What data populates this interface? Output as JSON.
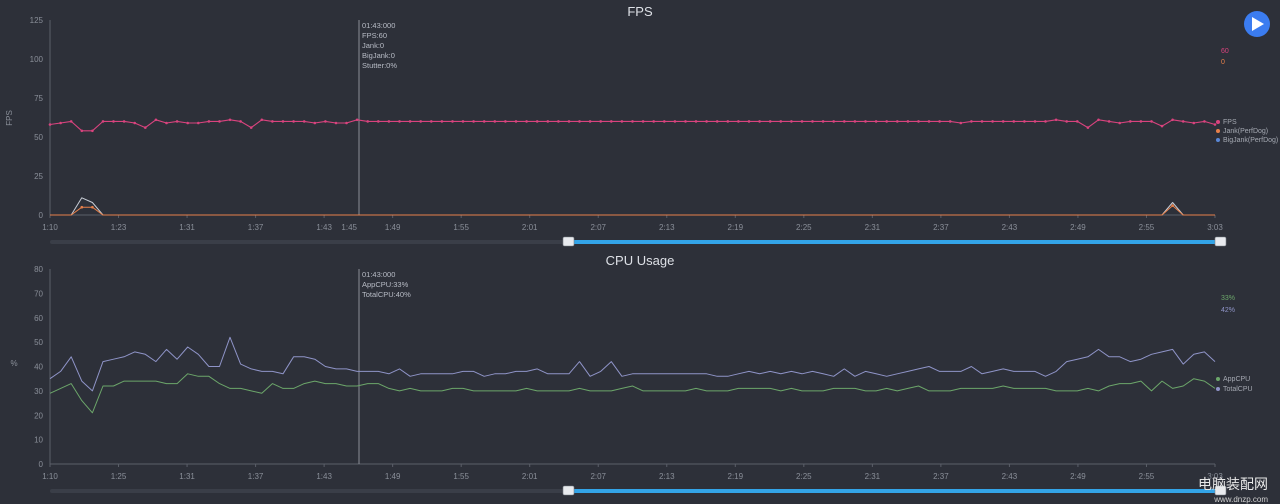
{
  "play_button": {
    "label": "play",
    "icon": "play-icon"
  },
  "watermark": {
    "title": "电脑装配网",
    "url": "www.dnzp.com"
  },
  "colors": {
    "background": "#2d3039",
    "axis": "#5b5f69",
    "fps": "#d9437e",
    "jank": "#e8804a",
    "big_jank": "#c8cdd6",
    "app_cpu": "#6ca66a",
    "total_cpu": "#8f94c8",
    "slider": "#33a4e8"
  },
  "chart_data": [
    {
      "type": "line",
      "title": "FPS",
      "ylabel": "FPS",
      "xlabel": "",
      "ylim": [
        0,
        125
      ],
      "yticks": [
        "0",
        "25",
        "50",
        "75",
        "100",
        "125"
      ],
      "xticks": [
        "1:10",
        "1:23",
        "1:31",
        "1:37",
        "1:43",
        "1:49",
        "1:55",
        "2:01",
        "2:07",
        "2:13",
        "2:19",
        "2:25",
        "2:31",
        "2:37",
        "2:43",
        "2:49",
        "2:55",
        "3:03"
      ],
      "tooltip": {
        "time": "01:43:000",
        "lines": [
          "FPS:60",
          "Jank:0",
          "BigJank:0",
          "Stutter:0%"
        ]
      },
      "legend": [
        "FPS",
        "Jank(PerfDog)",
        "BigJank(PerfDog)"
      ],
      "current_values": [
        "60",
        "0"
      ],
      "cursor_time": "1:45",
      "series": [
        {
          "name": "FPS",
          "values": [
            58,
            59,
            60,
            54,
            54,
            60,
            60,
            60,
            59,
            56,
            61,
            59,
            60,
            59,
            59,
            60,
            60,
            61,
            60,
            56,
            61,
            60,
            60,
            60,
            60,
            59,
            60,
            59,
            59,
            61,
            60,
            60,
            60,
            60,
            60,
            60,
            60,
            60,
            60,
            60,
            60,
            60,
            60,
            60,
            60,
            60,
            60,
            60,
            60,
            60,
            60,
            60,
            60,
            60,
            60,
            60,
            60,
            60,
            60,
            60,
            60,
            60,
            60,
            60,
            60,
            60,
            60,
            60,
            60,
            60,
            60,
            60,
            60,
            60,
            60,
            60,
            60,
            60,
            60,
            60,
            60,
            60,
            60,
            60,
            60,
            60,
            59,
            60,
            60,
            60,
            60,
            60,
            60,
            60,
            60,
            61,
            60,
            60,
            56,
            61,
            60,
            59,
            60,
            60,
            60,
            57,
            61,
            60,
            59,
            60,
            58
          ]
        },
        {
          "name": "Jank(PerfDog)",
          "values": [
            0,
            0,
            0,
            5,
            5,
            0,
            0,
            0,
            0,
            0,
            0,
            0,
            0,
            0,
            0,
            0,
            0,
            0,
            0,
            0,
            0,
            0,
            0,
            0,
            0,
            0,
            0,
            0,
            0,
            0,
            0,
            0,
            0,
            0,
            0,
            0,
            0,
            0,
            0,
            0,
            0,
            0,
            0,
            0,
            0,
            0,
            0,
            0,
            0,
            0,
            0,
            0,
            0,
            0,
            0,
            0,
            0,
            0,
            0,
            0,
            0,
            0,
            0,
            0,
            0,
            0,
            0,
            0,
            0,
            0,
            0,
            0,
            0,
            0,
            0,
            0,
            0,
            0,
            0,
            0,
            0,
            0,
            0,
            0,
            0,
            0,
            0,
            0,
            0,
            0,
            0,
            0,
            0,
            0,
            0,
            0,
            0,
            0,
            0,
            0,
            0,
            0,
            0,
            0,
            0,
            0,
            6,
            0,
            0,
            0,
            0
          ]
        },
        {
          "name": "BigJank(PerfDog)",
          "values": [
            0,
            0,
            0,
            11,
            8,
            0,
            0,
            0,
            0,
            0,
            0,
            0,
            0,
            0,
            0,
            0,
            0,
            0,
            0,
            0,
            0,
            0,
            0,
            0,
            0,
            0,
            0,
            0,
            0,
            0,
            0,
            0,
            0,
            0,
            0,
            0,
            0,
            0,
            0,
            0,
            0,
            0,
            0,
            0,
            0,
            0,
            0,
            0,
            0,
            0,
            0,
            0,
            0,
            0,
            0,
            0,
            0,
            0,
            0,
            0,
            0,
            0,
            0,
            0,
            0,
            0,
            0,
            0,
            0,
            0,
            0,
            0,
            0,
            0,
            0,
            0,
            0,
            0,
            0,
            0,
            0,
            0,
            0,
            0,
            0,
            0,
            0,
            0,
            0,
            0,
            0,
            0,
            0,
            0,
            0,
            0,
            0,
            0,
            0,
            0,
            0,
            0,
            0,
            0,
            0,
            0,
            8,
            0,
            0,
            0,
            0
          ]
        }
      ]
    },
    {
      "type": "line",
      "title": "CPU Usage",
      "ylabel": "%",
      "xlabel": "",
      "ylim": [
        0,
        80
      ],
      "yticks": [
        "0",
        "10",
        "20",
        "30",
        "40",
        "50",
        "60",
        "70",
        "80"
      ],
      "xticks": [
        "1:10",
        "1:25",
        "1:31",
        "1:37",
        "1:43",
        "1:49",
        "1:55",
        "2:01",
        "2:07",
        "2:13",
        "2:19",
        "2:25",
        "2:31",
        "2:37",
        "2:43",
        "2:49",
        "2:55",
        "3:03"
      ],
      "tooltip": {
        "time": "01:43:000",
        "lines": [
          "AppCPU:33%",
          "TotalCPU:40%"
        ]
      },
      "legend": [
        "AppCPU",
        "TotalCPU"
      ],
      "current_values": [
        "33%",
        "42%"
      ],
      "series": [
        {
          "name": "AppCPU",
          "values": [
            29,
            31,
            33,
            26,
            21,
            32,
            32,
            34,
            34,
            34,
            34,
            33,
            33,
            37,
            36,
            36,
            33,
            31,
            31,
            30,
            29,
            33,
            31,
            31,
            33,
            34,
            33,
            33,
            32,
            32,
            33,
            33,
            31,
            30,
            31,
            30,
            30,
            30,
            31,
            31,
            30,
            30,
            30,
            30,
            30,
            31,
            30,
            30,
            30,
            30,
            31,
            30,
            30,
            30,
            31,
            32,
            30,
            30,
            30,
            30,
            30,
            31,
            30,
            30,
            30,
            31,
            31,
            31,
            31,
            30,
            31,
            30,
            30,
            30,
            31,
            31,
            31,
            30,
            30,
            31,
            30,
            31,
            32,
            30,
            30,
            30,
            31,
            31,
            31,
            31,
            32,
            31,
            31,
            31,
            31,
            30,
            30,
            30,
            31,
            30,
            32,
            33,
            33,
            34,
            30,
            34,
            31,
            32,
            35,
            34,
            31
          ]
        },
        {
          "name": "TotalCPU",
          "values": [
            35,
            38,
            44,
            34,
            30,
            42,
            43,
            44,
            46,
            45,
            42,
            47,
            43,
            48,
            45,
            40,
            40,
            52,
            41,
            39,
            38,
            38,
            37,
            44,
            44,
            43,
            40,
            39,
            39,
            38,
            38,
            38,
            37,
            39,
            36,
            37,
            37,
            37,
            37,
            38,
            38,
            36,
            37,
            37,
            38,
            38,
            39,
            37,
            37,
            37,
            42,
            36,
            38,
            42,
            36,
            37,
            37,
            37,
            37,
            37,
            37,
            37,
            37,
            36,
            36,
            37,
            38,
            37,
            38,
            37,
            38,
            37,
            38,
            37,
            36,
            39,
            36,
            38,
            37,
            36,
            37,
            38,
            39,
            40,
            38,
            38,
            38,
            40,
            37,
            38,
            39,
            38,
            38,
            38,
            36,
            38,
            42,
            43,
            44,
            47,
            44,
            44,
            42,
            43,
            45,
            46,
            47,
            41,
            45,
            46,
            42
          ]
        }
      ]
    }
  ]
}
